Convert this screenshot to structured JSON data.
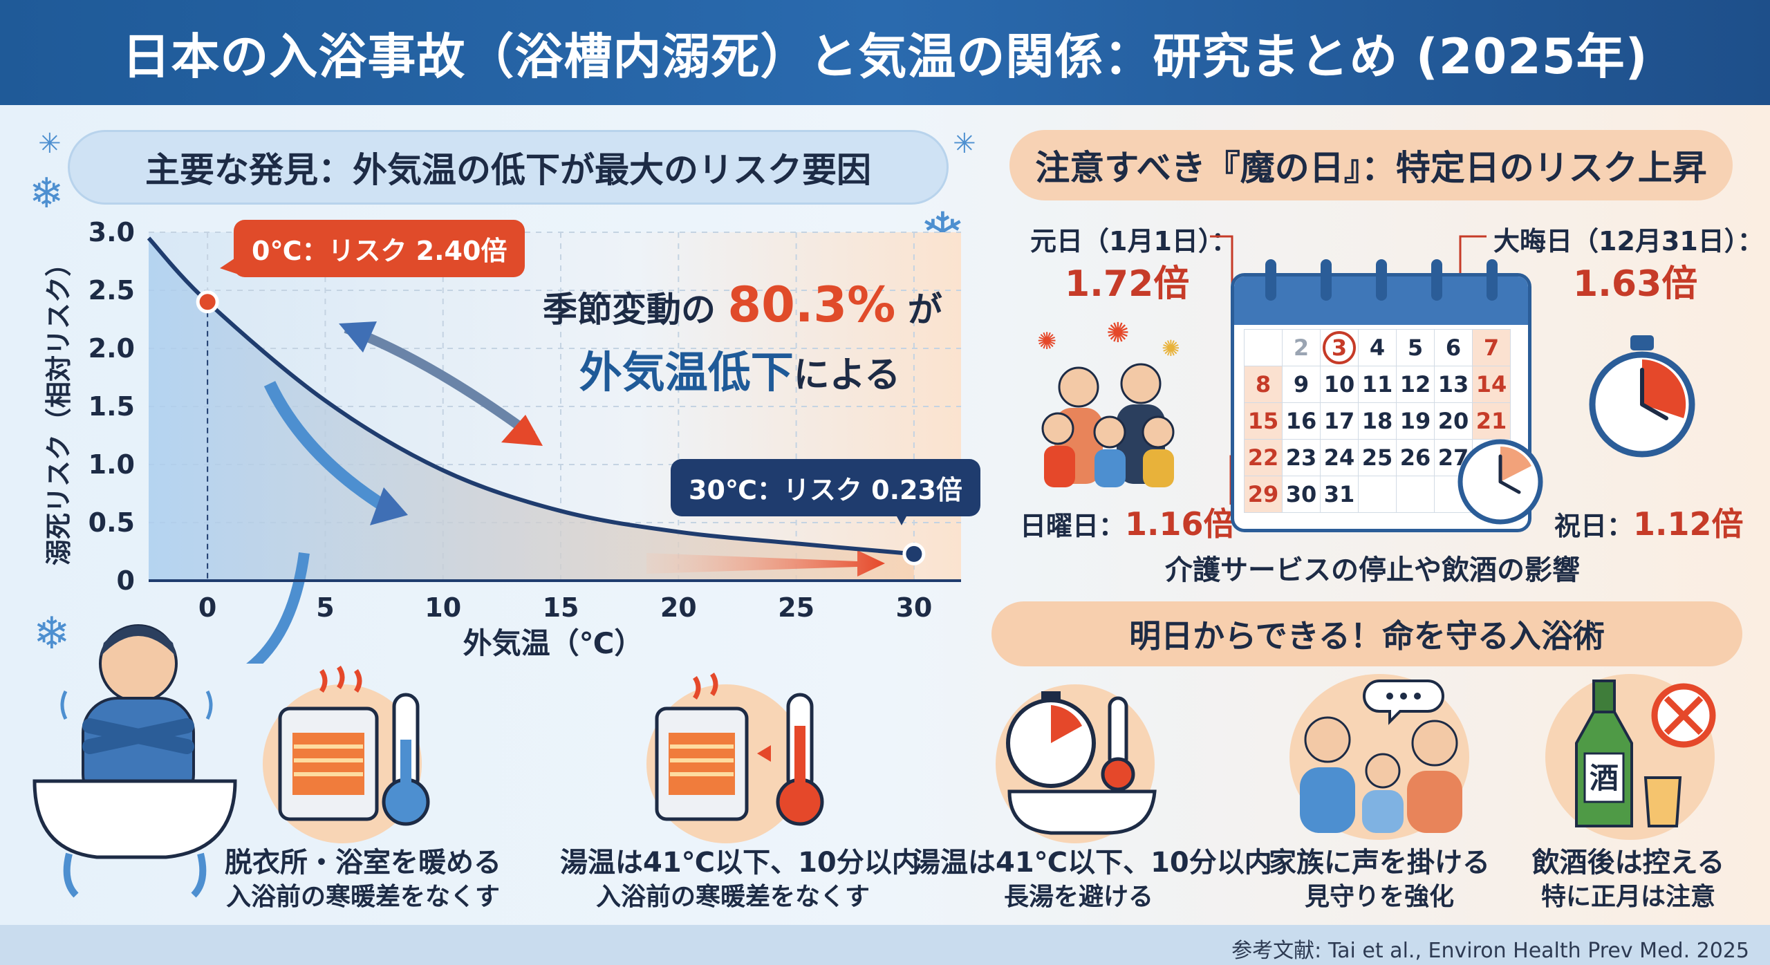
{
  "header": {
    "title": "日本の入浴事故（浴槽内溺死）と気温の関係：研究まとめ (2025年)"
  },
  "left_section": {
    "title": "主要な発見：外気温の低下が最大のリスク要因",
    "callout_low": "0℃：リスク 2.40倍",
    "callout_high": "30℃：リスク 0.23倍",
    "stat_line1_a": "季節変動の ",
    "stat_value": "80.3%",
    "stat_line1_b": " が",
    "stat_line2_a": "外気温低下",
    "stat_line2_b": "による",
    "tips": [
      {
        "title": "脱衣所・浴室を暖める",
        "sub": "入浴前の寒暖差をなくす"
      },
      {
        "title": "湯温は41℃以下、10分以内",
        "sub": "入浴前の寒暖差をなくす"
      }
    ]
  },
  "chart_data": {
    "type": "line",
    "xlabel": "外気温（℃）",
    "ylabel": "溺死リスク（相対リスク）",
    "x_ticks": [
      "0",
      "5",
      "10",
      "15",
      "20",
      "25",
      "30"
    ],
    "y_ticks": [
      "3.0",
      "2.5",
      "2.0",
      "1.5",
      "1.0",
      "0.5",
      "0"
    ],
    "xlim": [
      -2.5,
      32
    ],
    "ylim": [
      0,
      3.0
    ],
    "x": [
      -2.5,
      0,
      5,
      10,
      15,
      20,
      25,
      30
    ],
    "y": [
      2.95,
      2.4,
      1.55,
      0.95,
      0.6,
      0.42,
      0.32,
      0.23
    ],
    "highlight_points": [
      {
        "x": 0,
        "y": 2.4
      },
      {
        "x": 30,
        "y": 0.23
      }
    ],
    "colors": {
      "line": "#1f3c6e",
      "low_point": "#e04b2a",
      "high_point": "#1f3c6e"
    }
  },
  "right_section": {
    "title": "注意すべき『魔の日』：特定日のリスク上昇",
    "new_year": {
      "label": "元日（1月1日）：",
      "value": "1.72倍"
    },
    "new_years_eve": {
      "label": "大晦日（12月31日）：",
      "value": "1.63倍"
    },
    "sunday": {
      "label": "日曜日：",
      "value": "1.16倍"
    },
    "holiday": {
      "label": "祝日：",
      "value": "1.12倍"
    },
    "caption": "介護サービスの停止や飲酒の影響",
    "calendar": {
      "rows": [
        [
          "",
          "2",
          "3",
          "4",
          "5",
          "6",
          "7"
        ],
        [
          "8",
          "9",
          "10",
          "11",
          "12",
          "13",
          "14"
        ],
        [
          "15",
          "16",
          "17",
          "18",
          "19",
          "20",
          "21"
        ],
        [
          "22",
          "23",
          "24",
          "25",
          "26",
          "27",
          ""
        ],
        [
          "29",
          "30",
          "31",
          "",
          "",
          "",
          ""
        ]
      ]
    }
  },
  "bathing_section": {
    "title": "明日からできる！命を守る入浴術",
    "tips": [
      {
        "title": "湯温は41℃以下、10分以内",
        "sub": "長湯を避ける"
      },
      {
        "title": "家族に声を掛ける",
        "sub": "見守りを強化"
      },
      {
        "title": "飲酒後は控える",
        "sub": "特に正月は注意",
        "bottle_label": "酒"
      }
    ]
  },
  "footer": {
    "reference": "参考文献: Tai et al., Environ Health Prev Med. 2025"
  },
  "colors": {
    "header_bg": "#2a6aae",
    "accent_red": "#c63b28",
    "accent_orange": "#e8633a",
    "navy": "#1f3c6e"
  }
}
